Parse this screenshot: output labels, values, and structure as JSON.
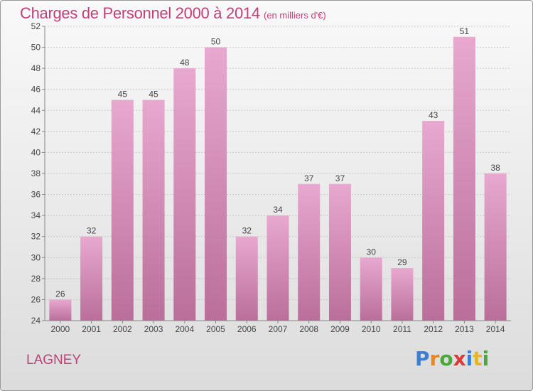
{
  "title": "Charges de Personnel 2000 à 2014",
  "subtitle": "(en milliers d'€)",
  "commune": "LAGNEY",
  "logo": {
    "letters": [
      "P",
      "r",
      "o",
      "x",
      "i",
      "t",
      "i"
    ],
    "colors": [
      "#3a7fd1",
      "#e8872a",
      "#4aa83c",
      "#d93a3a",
      "#3a7fd1",
      "#e8b52a",
      "#4aa83c"
    ]
  },
  "colors": {
    "accent": "#c0417a",
    "bar_top": "#e8a8cf",
    "bar_bottom": "#b96f9a"
  },
  "chart_data": {
    "type": "bar",
    "categories": [
      "2000",
      "2001",
      "2002",
      "2003",
      "2004",
      "2005",
      "2006",
      "2007",
      "2008",
      "2009",
      "2010",
      "2011",
      "2012",
      "2013",
      "2014"
    ],
    "values": [
      26,
      32,
      45,
      45,
      48,
      50,
      32,
      34,
      37,
      37,
      30,
      29,
      43,
      51,
      38
    ],
    "ylim": [
      24,
      52
    ],
    "yticks": [
      24,
      26,
      28,
      30,
      32,
      34,
      36,
      38,
      40,
      42,
      44,
      46,
      48,
      50,
      52
    ],
    "grid": true,
    "data_labels": true
  }
}
